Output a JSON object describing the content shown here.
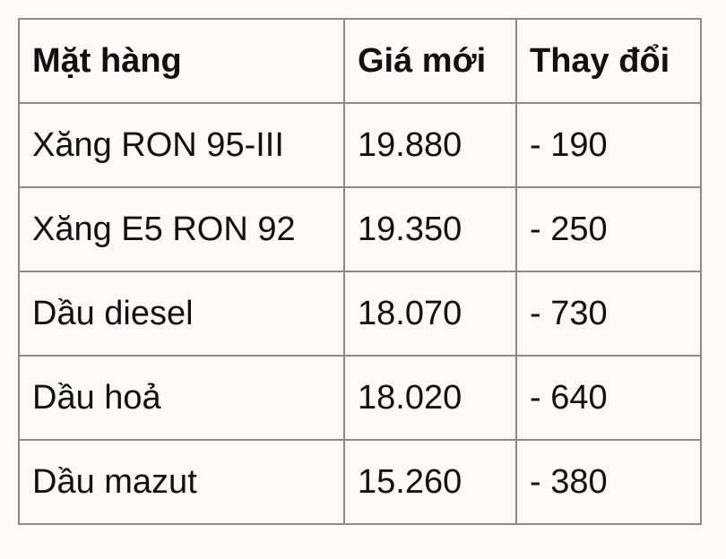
{
  "table": {
    "headers": [
      "Mặt hàng",
      "Giá mới",
      "Thay đổi"
    ],
    "rows": [
      [
        "Xăng RON 95-III",
        "19.880",
        "- 190"
      ],
      [
        "Xăng E5 RON 92",
        "19.350",
        "- 250"
      ],
      [
        "Dầu diesel",
        "18.070",
        "- 730"
      ],
      [
        "Dầu hoả",
        "18.020",
        "- 640"
      ],
      [
        "Dầu mazut",
        "15.260",
        "- 380"
      ]
    ]
  },
  "colors": {
    "background": "#fdf9f8",
    "border": "#8a8a8a",
    "text": "#111111"
  }
}
